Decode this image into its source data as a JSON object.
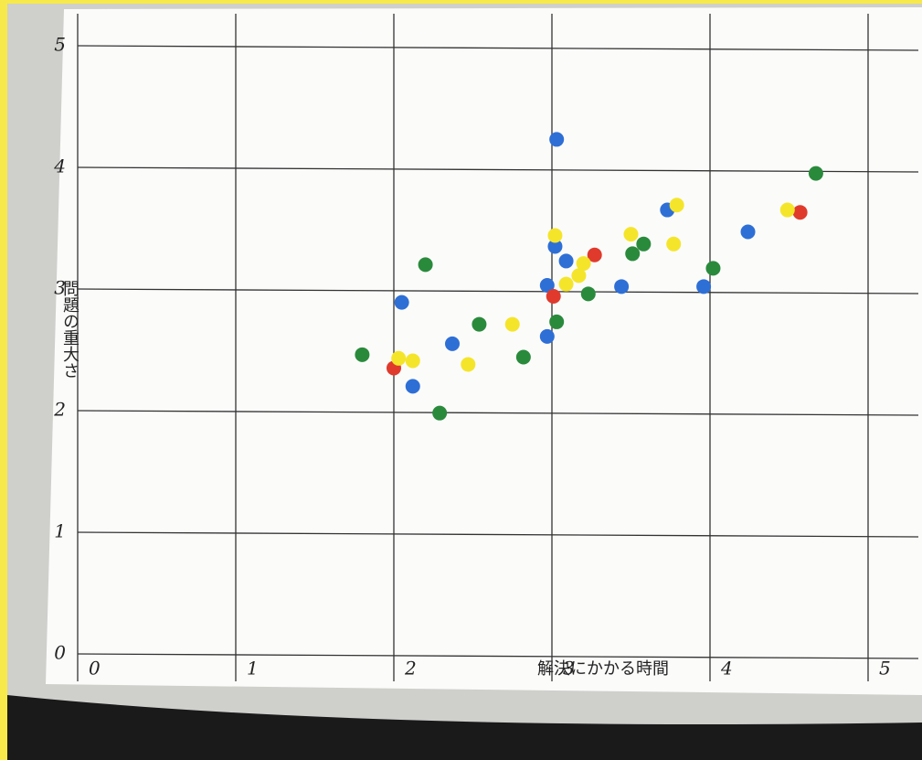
{
  "chart_data": {
    "type": "scatter",
    "x_label": "解決にかかる時間",
    "y_label": "問題の重大さ",
    "xlim": [
      0,
      5
    ],
    "ylim": [
      0,
      5
    ],
    "xticks": [
      0,
      1,
      2,
      3,
      4,
      5
    ],
    "yticks": [
      0,
      1,
      2,
      3,
      4,
      5
    ],
    "grid": true,
    "series": [
      {
        "color": "#2e6fd6",
        "x": [
          3.03,
          2.05,
          2.37,
          2.12,
          2.97,
          2.97,
          3.02,
          3.09,
          3.44,
          3.73,
          3.96,
          4.24
        ],
        "values": [
          4.23,
          2.89,
          2.55,
          2.2,
          2.61,
          3.03,
          3.35,
          3.23,
          3.02,
          3.65,
          3.02,
          3.47
        ]
      },
      {
        "color": "#2a8a3c",
        "x": [
          1.8,
          2.2,
          2.29,
          2.54,
          2.82,
          3.03,
          3.23,
          3.51,
          3.58,
          4.02,
          4.67
        ],
        "values": [
          2.46,
          3.2,
          1.98,
          2.71,
          2.44,
          2.73,
          2.96,
          3.29,
          3.37,
          3.17,
          3.95
        ]
      },
      {
        "color": "#e03a2c",
        "x": [
          2.0,
          3.01,
          3.27,
          4.57
        ],
        "values": [
          2.35,
          2.94,
          3.28,
          3.63
        ]
      },
      {
        "color": "#f5e52a",
        "x": [
          2.03,
          2.12,
          2.47,
          2.75,
          3.02,
          3.09,
          3.17,
          3.2,
          3.5,
          3.77,
          3.79,
          4.49
        ],
        "values": [
          2.43,
          2.41,
          2.38,
          2.71,
          3.44,
          3.04,
          3.11,
          3.21,
          3.45,
          3.37,
          3.69,
          3.65
        ]
      }
    ]
  }
}
